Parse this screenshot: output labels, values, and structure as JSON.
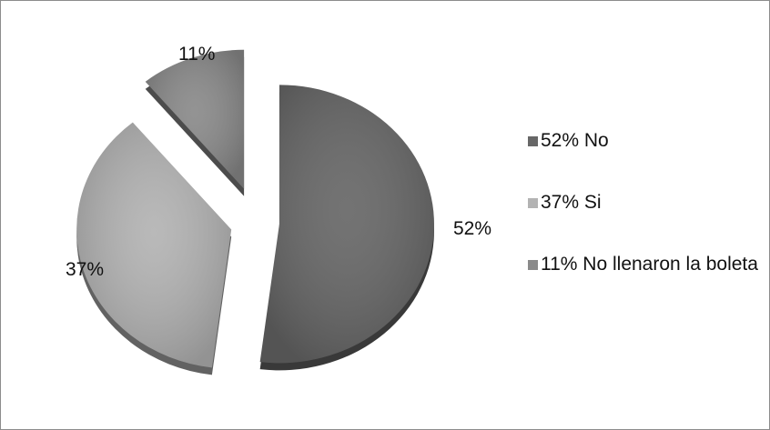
{
  "chart_data": {
    "type": "pie",
    "title": "",
    "categories": [
      "52% No",
      "37% Si",
      "11% No llenaron la boleta"
    ],
    "values": [
      52,
      37,
      11
    ],
    "data_labels": [
      "52%",
      "37%",
      "11%"
    ],
    "colors": [
      "#676767",
      "#b3b3b3",
      "#8a8a8a"
    ],
    "style": "3d exploded",
    "legend": {
      "position": "right",
      "entries": [
        "52% No",
        "37% Si",
        "11% No llenaron la boleta"
      ]
    }
  }
}
